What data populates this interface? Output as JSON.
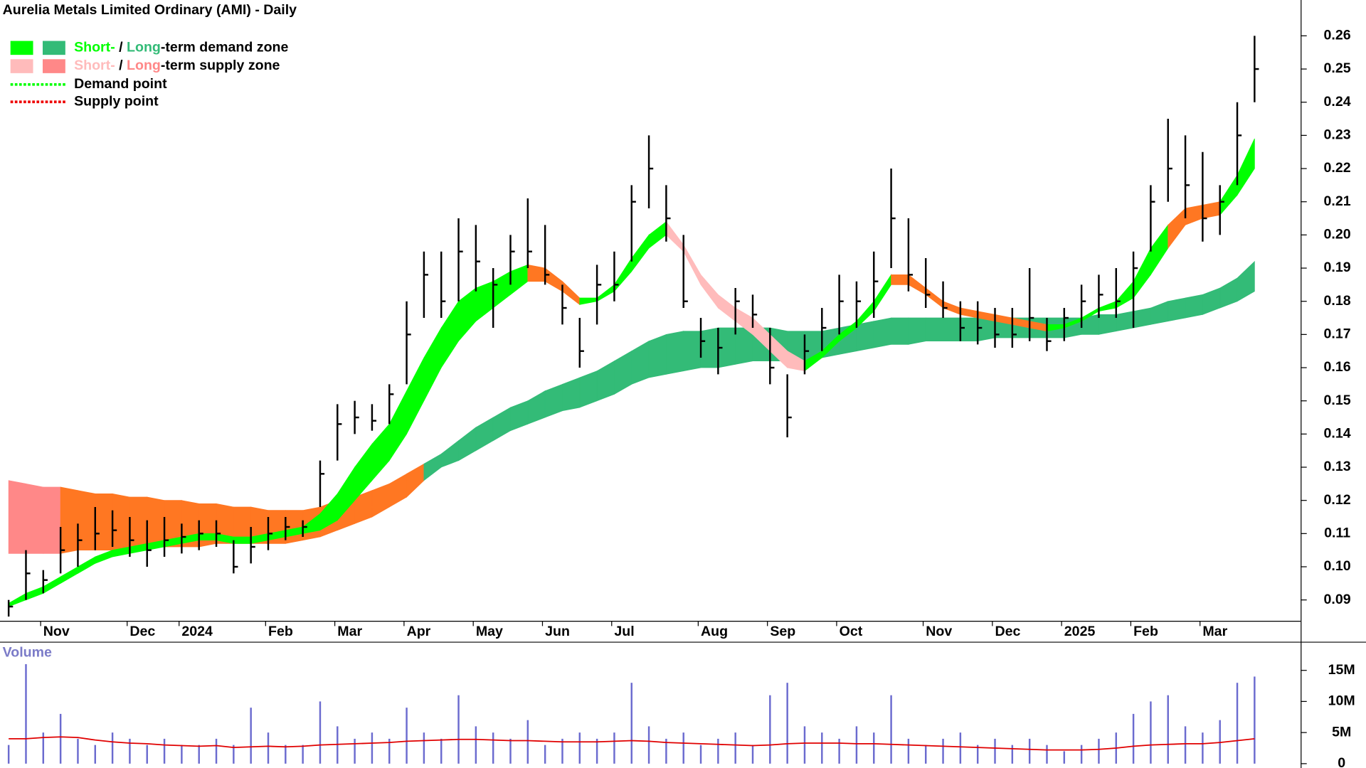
{
  "chart_data": [
    {
      "type": "ohlc",
      "title": "Aurelia Metals Limited Ordinary (AMI) - Daily",
      "categories": [
        null,
        null,
        "Nov",
        null,
        null,
        null,
        null,
        "Dec",
        null,
        null,
        "2024",
        null,
        null,
        null,
        null,
        "Feb",
        null,
        null,
        null,
        "Mar",
        null,
        null,
        null,
        "Apr",
        null,
        null,
        null,
        "May",
        null,
        null,
        null,
        "Jun",
        null,
        null,
        null,
        "Jul",
        null,
        null,
        null,
        null,
        "Aug",
        null,
        null,
        null,
        "Sep",
        null,
        null,
        null,
        "Oct",
        null,
        null,
        null,
        null,
        "Nov",
        null,
        null,
        null,
        "Dec",
        null,
        null,
        null,
        "2025",
        null,
        null,
        null,
        "Feb",
        null,
        null,
        null,
        "Mar",
        null,
        null,
        null
      ],
      "high": [
        0.09,
        0.105,
        0.099,
        0.112,
        0.113,
        0.118,
        0.117,
        0.115,
        0.114,
        0.115,
        0.113,
        0.114,
        0.114,
        0.108,
        0.112,
        0.115,
        0.115,
        0.114,
        0.132,
        0.149,
        0.15,
        0.149,
        0.155,
        0.18,
        0.195,
        0.195,
        0.205,
        0.203,
        0.19,
        0.2,
        0.211,
        0.203,
        0.185,
        0.175,
        0.191,
        0.195,
        0.215,
        0.23,
        0.215,
        0.2,
        0.175,
        0.172,
        0.184,
        0.182,
        0.172,
        0.158,
        0.17,
        0.178,
        0.188,
        0.186,
        0.195,
        0.22,
        0.205,
        0.193,
        0.186,
        0.18,
        0.18,
        0.178,
        0.178,
        0.19,
        0.175,
        0.178,
        0.185,
        0.188,
        0.19,
        0.195,
        0.215,
        0.235,
        0.23,
        0.225,
        0.215,
        0.24,
        0.26
      ],
      "low": [
        0.085,
        0.09,
        0.092,
        0.098,
        0.1,
        0.105,
        0.106,
        0.103,
        0.1,
        0.103,
        0.104,
        0.105,
        0.106,
        0.098,
        0.101,
        0.105,
        0.108,
        0.109,
        0.118,
        0.132,
        0.14,
        0.141,
        0.143,
        0.155,
        0.175,
        0.175,
        0.18,
        0.183,
        0.172,
        0.185,
        0.19,
        0.185,
        0.173,
        0.16,
        0.173,
        0.18,
        0.192,
        0.208,
        0.198,
        0.178,
        0.163,
        0.158,
        0.17,
        0.172,
        0.155,
        0.139,
        0.158,
        0.165,
        0.17,
        0.172,
        0.175,
        0.19,
        0.183,
        0.178,
        0.175,
        0.168,
        0.167,
        0.166,
        0.166,
        0.168,
        0.165,
        0.168,
        0.172,
        0.175,
        0.175,
        0.172,
        0.195,
        0.21,
        0.205,
        0.198,
        0.2,
        0.215,
        0.24
      ],
      "close": [
        0.088,
        0.098,
        0.096,
        0.105,
        0.108,
        0.11,
        0.111,
        0.108,
        0.105,
        0.108,
        0.109,
        0.11,
        0.11,
        0.1,
        0.106,
        0.11,
        0.112,
        0.112,
        0.128,
        0.143,
        0.145,
        0.144,
        0.152,
        0.17,
        0.188,
        0.18,
        0.195,
        0.192,
        0.185,
        0.195,
        0.195,
        0.188,
        0.178,
        0.165,
        0.185,
        0.185,
        0.21,
        0.22,
        0.205,
        0.18,
        0.168,
        0.166,
        0.18,
        0.176,
        0.16,
        0.145,
        0.165,
        0.172,
        0.18,
        0.18,
        0.186,
        0.205,
        0.188,
        0.182,
        0.178,
        0.172,
        0.172,
        0.17,
        0.17,
        0.175,
        0.168,
        0.175,
        0.18,
        0.182,
        0.18,
        0.19,
        0.21,
        0.22,
        0.215,
        0.205,
        0.21,
        0.23,
        0.25
      ],
      "bar_color": "#000000",
      "long_zone": {
        "upper": [
          0.126,
          0.125,
          0.124,
          0.124,
          0.123,
          0.122,
          0.122,
          0.121,
          0.121,
          0.12,
          0.12,
          0.119,
          0.119,
          0.118,
          0.118,
          0.117,
          0.117,
          0.117,
          0.118,
          0.12,
          0.121,
          0.123,
          0.125,
          0.128,
          0.131,
          0.134,
          0.138,
          0.142,
          0.145,
          0.148,
          0.15,
          0.153,
          0.155,
          0.157,
          0.159,
          0.162,
          0.165,
          0.168,
          0.17,
          0.171,
          0.171,
          0.172,
          0.172,
          0.172,
          0.172,
          0.171,
          0.171,
          0.171,
          0.172,
          0.173,
          0.174,
          0.175,
          0.175,
          0.175,
          0.175,
          0.175,
          0.175,
          0.175,
          0.175,
          0.175,
          0.175,
          0.175,
          0.175,
          0.176,
          0.176,
          0.177,
          0.178,
          0.18,
          0.181,
          0.182,
          0.184,
          0.187,
          0.192
        ],
        "lower": [
          0.104,
          0.104,
          0.104,
          0.104,
          0.105,
          0.105,
          0.105,
          0.106,
          0.106,
          0.106,
          0.106,
          0.106,
          0.107,
          0.107,
          0.107,
          0.107,
          0.107,
          0.108,
          0.109,
          0.111,
          0.113,
          0.115,
          0.118,
          0.121,
          0.126,
          0.13,
          0.132,
          0.135,
          0.138,
          0.141,
          0.143,
          0.145,
          0.147,
          0.148,
          0.15,
          0.152,
          0.155,
          0.157,
          0.158,
          0.159,
          0.16,
          0.16,
          0.161,
          0.162,
          0.162,
          0.162,
          0.162,
          0.163,
          0.164,
          0.165,
          0.166,
          0.167,
          0.167,
          0.168,
          0.168,
          0.168,
          0.168,
          0.169,
          0.169,
          0.169,
          0.169,
          0.169,
          0.17,
          0.17,
          0.171,
          0.172,
          0.173,
          0.174,
          0.175,
          0.176,
          0.178,
          0.18,
          0.183
        ],
        "colors": [
          "#f88",
          "#f88",
          "#f88",
          "#f88",
          "#f72",
          "#f72",
          "#f72",
          "#f72",
          "#f72",
          "#f72",
          "#f72",
          "#f72",
          "#f72",
          "#f72",
          "#f72",
          "#f72",
          "#f72",
          "#f72",
          "#f72",
          "#f72",
          "#f72",
          "#f72",
          "#f72",
          "#f72",
          "#f72",
          "#3b7",
          "#3b7",
          "#3b7",
          "#3b7",
          "#3b7",
          "#3b7",
          "#3b7",
          "#3b7",
          "#3b7",
          "#3b7",
          "#3b7",
          "#3b7",
          "#3b7",
          "#3b7",
          "#3b7",
          "#3b7",
          "#3b7",
          "#3b7",
          "#3b7",
          "#3b7",
          "#3b7",
          "#3b7",
          "#3b7",
          "#3b7",
          "#3b7",
          "#3b7",
          "#3b7",
          "#3b7",
          "#3b7",
          "#3b7",
          "#3b7",
          "#3b7",
          "#3b7",
          "#3b7",
          "#3b7",
          "#3b7",
          "#3b7",
          "#3b7",
          "#3b7",
          "#3b7",
          "#3b7",
          "#3b7",
          "#3b7",
          "#3b7",
          "#3b7",
          "#3b7",
          "#3b7",
          "#3b7"
        ]
      },
      "short_zone": {
        "upper": [
          0.089,
          0.092,
          0.094,
          0.097,
          0.1,
          0.103,
          0.105,
          0.106,
          0.107,
          0.108,
          0.109,
          0.11,
          0.11,
          0.109,
          0.109,
          0.11,
          0.111,
          0.112,
          0.116,
          0.122,
          0.13,
          0.137,
          0.143,
          0.153,
          0.163,
          0.172,
          0.18,
          0.184,
          0.186,
          0.189,
          0.191,
          0.19,
          0.186,
          0.181,
          0.181,
          0.185,
          0.193,
          0.2,
          0.204,
          0.197,
          0.188,
          0.182,
          0.178,
          0.175,
          0.17,
          0.165,
          0.162,
          0.165,
          0.17,
          0.174,
          0.18,
          0.188,
          0.188,
          0.184,
          0.18,
          0.178,
          0.177,
          0.176,
          0.175,
          0.174,
          0.173,
          0.173,
          0.175,
          0.178,
          0.18,
          0.186,
          0.196,
          0.203,
          0.208,
          0.209,
          0.21,
          0.218,
          0.229
        ],
        "lower": [
          0.088,
          0.09,
          0.092,
          0.095,
          0.098,
          0.101,
          0.103,
          0.104,
          0.105,
          0.106,
          0.107,
          0.108,
          0.108,
          0.107,
          0.107,
          0.108,
          0.109,
          0.11,
          0.111,
          0.114,
          0.12,
          0.126,
          0.132,
          0.14,
          0.15,
          0.16,
          0.168,
          0.174,
          0.178,
          0.182,
          0.186,
          0.186,
          0.183,
          0.179,
          0.18,
          0.183,
          0.189,
          0.196,
          0.2,
          0.195,
          0.185,
          0.178,
          0.174,
          0.17,
          0.165,
          0.16,
          0.159,
          0.163,
          0.168,
          0.172,
          0.177,
          0.185,
          0.185,
          0.182,
          0.178,
          0.176,
          0.175,
          0.174,
          0.173,
          0.172,
          0.171,
          0.172,
          0.174,
          0.177,
          0.178,
          0.181,
          0.188,
          0.196,
          0.203,
          0.205,
          0.206,
          0.212,
          0.22
        ],
        "colors": [
          "#0f0",
          "#0f0",
          "#0f0",
          "#0f0",
          "#0f0",
          "#0f0",
          "#0f0",
          "#0f0",
          "#0f0",
          "#0f0",
          "#0f0",
          "#0f0",
          "#0f0",
          "#0f0",
          "#0f0",
          "#0f0",
          "#0f0",
          "#0f0",
          "#0f0",
          "#0f0",
          "#0f0",
          "#0f0",
          "#0f0",
          "#0f0",
          "#0f0",
          "#0f0",
          "#0f0",
          "#0f0",
          "#0f0",
          "#0f0",
          "#0f0",
          "#f72",
          "#f72",
          "#f72",
          "#0f0",
          "#0f0",
          "#0f0",
          "#0f0",
          "#0f0",
          "#fbb",
          "#fbb",
          "#fbb",
          "#fbb",
          "#fbb",
          "#fbb",
          "#fbb",
          "#fbb",
          "#0f0",
          "#0f0",
          "#0f0",
          "#0f0",
          "#0f0",
          "#f72",
          "#f72",
          "#f72",
          "#f72",
          "#f72",
          "#f72",
          "#f72",
          "#f72",
          "#f72",
          "#0f0",
          "#0f0",
          "#0f0",
          "#0f0",
          "#0f0",
          "#0f0",
          "#0f0",
          "#f72",
          "#f72",
          "#f72",
          "#0f0",
          "#0f0"
        ]
      },
      "ylim": [
        0.0837,
        0.2708
      ],
      "yticks": [
        0.09,
        {
          "value": 0.1,
          "label": "0.10"
        },
        0.11,
        0.12,
        0.13,
        0.14,
        0.15,
        0.16,
        0.17,
        0.18,
        0.19,
        {
          "value": 0.2,
          "label": "0.20"
        },
        0.21,
        0.22,
        0.23,
        0.24,
        0.25,
        0.26
      ],
      "legend": {
        "corner": "top-left",
        "zones": [
          {
            "short": "Short-",
            "sep": " / ",
            "long": "Long",
            "text": "-term demand zone",
            "short_color": "#0f0",
            "long_color": "#3b7"
          },
          {
            "short": "Short-",
            "sep": " / ",
            "long": "Long",
            "text": "-term supply zone",
            "short_color": "#fbb",
            "long_color": "#f88"
          }
        ],
        "points": [
          {
            "text": "Demand point",
            "color": "#0f0"
          },
          {
            "text": "Supply point",
            "color": "#e00"
          }
        ]
      }
    },
    {
      "type": "bar",
      "title": "Volume",
      "values": [
        3,
        16,
        5,
        8,
        4,
        3,
        5,
        4,
        3,
        4,
        3,
        3,
        4,
        3,
        9,
        5,
        3,
        3,
        10,
        6,
        4,
        5,
        4,
        9,
        5,
        4,
        11,
        6,
        5,
        4,
        7,
        3,
        4,
        5,
        4,
        5,
        13,
        6,
        4,
        5,
        3,
        4,
        5,
        3,
        11,
        13,
        6,
        5,
        4,
        6,
        5,
        11,
        4,
        3,
        4,
        5,
        3,
        4,
        3,
        4,
        3,
        2,
        3,
        4,
        5,
        8,
        10,
        11,
        6,
        5,
        7,
        13,
        14
      ],
      "color": "#6b6bcf",
      "average": {
        "values": [
          4,
          4,
          4.2,
          4.3,
          4.2,
          3.8,
          3.5,
          3.3,
          3.2,
          3,
          2.9,
          2.8,
          2.9,
          2.6,
          2.7,
          2.8,
          2.7,
          2.8,
          3,
          3.1,
          3.2,
          3.3,
          3.4,
          3.6,
          3.7,
          3.8,
          3.9,
          3.9,
          3.8,
          3.7,
          3.7,
          3.6,
          3.5,
          3.5,
          3.5,
          3.6,
          3.7,
          3.6,
          3.4,
          3.3,
          3.2,
          3.1,
          3,
          2.9,
          3,
          3.2,
          3.3,
          3.3,
          3.3,
          3.2,
          3.2,
          3.1,
          3,
          2.9,
          2.8,
          2.7,
          2.6,
          2.5,
          2.4,
          2.3,
          2.2,
          2.2,
          2.2,
          2.3,
          2.5,
          2.8,
          3,
          3.1,
          3.2,
          3.2,
          3.4,
          3.7,
          4
        ],
        "color": "#e00000"
      },
      "ylim": [
        0,
        19.6
      ],
      "yticks": [
        0,
        {
          "value": 5,
          "label": "5M"
        },
        {
          "value": 10,
          "label": "10M"
        },
        {
          "value": 15,
          "label": "15M"
        }
      ]
    }
  ]
}
